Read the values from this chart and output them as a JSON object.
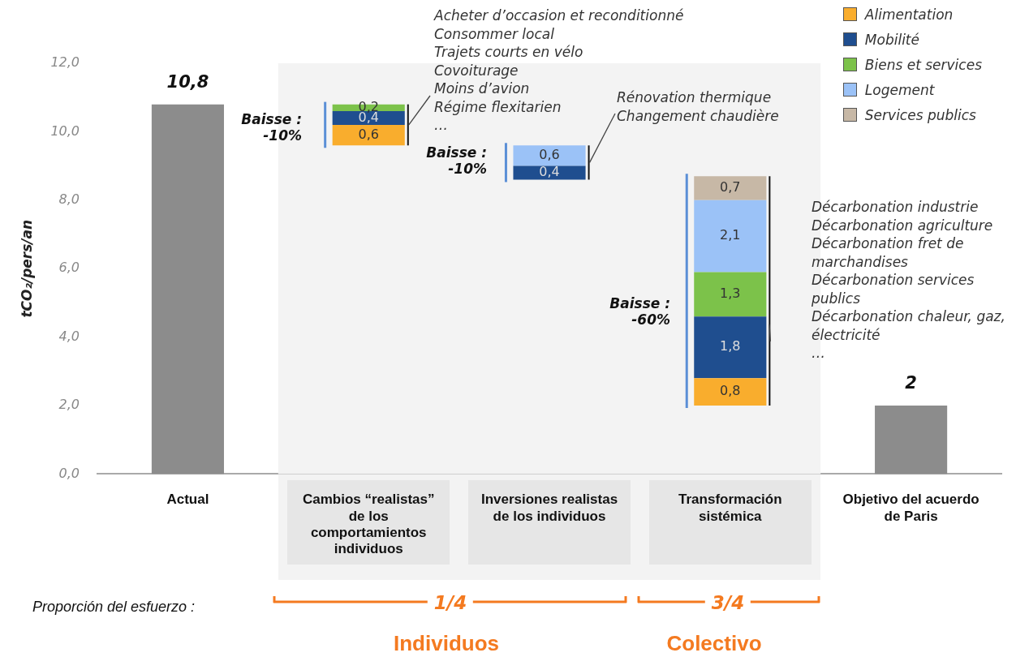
{
  "chart_data": {
    "type": "bar",
    "ylabel": "tCO₂/pers/an",
    "categories": [
      "Actual",
      "Cambios “realistas” de los comportamientos individuos",
      "Inversiones realistas de los individuos",
      "Transformación sistémica",
      "Objetivo del acuerdo de Paris"
    ],
    "series": [
      {
        "color": "#8c8c8c",
        "values": [
          10.8,
          null,
          null,
          null,
          2
        ],
        "value_labels": [
          "10,8",
          null,
          null,
          null,
          "2"
        ]
      },
      {
        "name": "Alimentation",
        "color": "#f9ad2d",
        "base": [
          null,
          9.6,
          null,
          2,
          null
        ],
        "values": [
          null,
          0.6,
          null,
          0.8,
          null
        ],
        "value_labels": [
          null,
          "0,6",
          null,
          "0,8",
          null
        ]
      },
      {
        "name": "Mobilité",
        "color": "#1f4e8f",
        "base": [
          null,
          10.2,
          8.6,
          2.8,
          null
        ],
        "values": [
          null,
          0.4,
          0.4,
          1.8,
          null
        ],
        "value_labels": [
          null,
          "0,4",
          "0,4",
          "1,8",
          null
        ]
      },
      {
        "name": "Biens et services",
        "color": "#7cc24a",
        "base": [
          null,
          10.6,
          null,
          4.6,
          null
        ],
        "values": [
          null,
          0.2,
          null,
          1.3,
          null
        ],
        "value_labels": [
          null,
          "0,2",
          null,
          "1,3",
          null
        ]
      },
      {
        "name": "Logement",
        "color": "#9bc2f7",
        "base": [
          null,
          null,
          9,
          5.9,
          null
        ],
        "values": [
          null,
          null,
          0.6,
          2.1,
          null
        ],
        "value_labels": [
          null,
          null,
          "0,6",
          "2,1",
          null
        ]
      },
      {
        "name": "Services publics",
        "color": "#c7b8a6",
        "base": [
          null,
          null,
          null,
          8,
          null
        ],
        "values": [
          null,
          null,
          null,
          0.7,
          null
        ],
        "value_labels": [
          null,
          null,
          null,
          "0,7",
          null
        ]
      }
    ],
    "ylim": [
      0,
      12
    ],
    "yticks": [
      {
        "value": 0,
        "label": "0,0"
      },
      {
        "value": 2,
        "label": "2,0"
      },
      {
        "value": 4,
        "label": "4,0"
      },
      {
        "value": 6,
        "label": "6,0"
      },
      {
        "value": 8,
        "label": "8,0"
      },
      {
        "value": 10,
        "label": "10,0"
      },
      {
        "value": 12,
        "label": "12,0"
      }
    ],
    "grid": false,
    "legend": "top right",
    "bands": [
      {
        "axis": "x",
        "from": "Cambios “realistas” de los comportamientos individuos",
        "to": "Transformación sistémica",
        "color": "#f3f3f3"
      }
    ],
    "annotations": [
      "Acheter d’occasion et reconditionné\nConsommer local\nTrajets courts en vélo\nCovoiturage\nMoins d’avion\nRégime flexitarien\n…",
      "Rénovation thermique\nChangement chaudière",
      "Décarbonation industrie\nDécarbonation agriculture\nDécarbonation fret de marchandises\nDécarbonation services publics\nDécarbonation chaleur, gaz, électricité\n…",
      "Baisse :\n-10%",
      "Baisse :\n-10%",
      "Baisse :\n-60%",
      "Proporción del esfuerzo :",
      "1/4",
      "3/4",
      "Individuos",
      "Colectivo"
    ]
  }
}
